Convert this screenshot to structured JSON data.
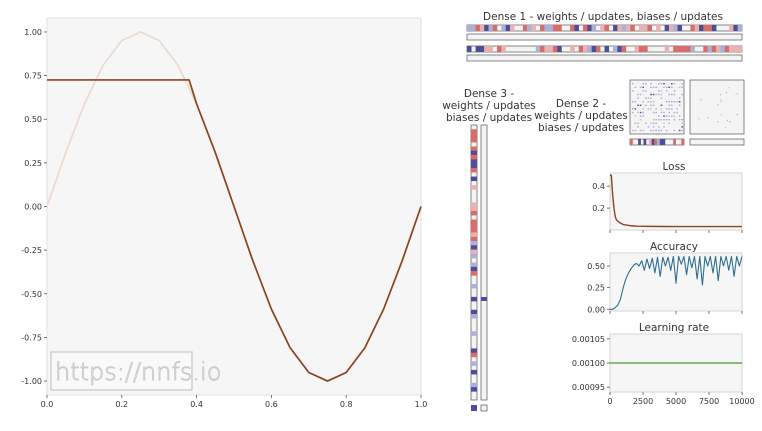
{
  "watermark": "https://nnfs.io",
  "panels": {
    "dense1_title": "Dense 1 - weights / updates, biases / updates",
    "dense2_title": [
      "Dense 2 -",
      "weights / updates",
      "biases / updates"
    ],
    "dense3_title": [
      "Dense 3 -",
      "weights / updates",
      "biases / updates"
    ]
  },
  "chart_data": [
    {
      "type": "line",
      "id": "main",
      "title": "",
      "xlim": [
        0,
        1
      ],
      "ylim": [
        -1.08,
        1.08
      ],
      "x_ticks": [
        "0.0",
        "0.2",
        "0.4",
        "0.6",
        "0.8",
        "1.0"
      ],
      "y_ticks": [
        "-1.00",
        "-0.75",
        "-0.50",
        "-0.25",
        "0.00",
        "0.25",
        "0.50",
        "0.75",
        "1.00"
      ],
      "series": [
        {
          "color": "#ecd9cf",
          "x": [
            0,
            0.05,
            0.1,
            0.15,
            0.2,
            0.25,
            0.3,
            0.35,
            0.4,
            0.45,
            0.5,
            0.55,
            0.6,
            0.65,
            0.7,
            0.75,
            0.8,
            0.85,
            0.9,
            0.95,
            1.0
          ],
          "y": [
            0,
            0.309,
            0.588,
            0.809,
            0.951,
            1.0,
            0.951,
            0.809,
            0.588,
            0.309,
            0,
            -0.309,
            -0.588,
            -0.809,
            -0.951,
            -1.0,
            -0.951,
            -0.809,
            -0.588,
            -0.309,
            0
          ]
        },
        {
          "color": "#8b4421",
          "x": [
            0,
            0.05,
            0.1,
            0.15,
            0.2,
            0.25,
            0.3,
            0.35,
            0.38,
            0.4,
            0.45,
            0.5,
            0.55,
            0.6,
            0.65,
            0.7,
            0.75,
            0.8,
            0.85,
            0.9,
            0.95,
            1.0
          ],
          "y": [
            0.725,
            0.725,
            0.725,
            0.725,
            0.725,
            0.725,
            0.725,
            0.725,
            0.725,
            0.588,
            0.309,
            0,
            -0.309,
            -0.588,
            -0.809,
            -0.951,
            -1.0,
            -0.951,
            -0.809,
            -0.588,
            -0.309,
            0
          ]
        }
      ]
    },
    {
      "type": "line",
      "id": "loss",
      "title": "Loss",
      "xlim": [
        0,
        10000
      ],
      "ylim": [
        0,
        0.52
      ],
      "y_ticks": [
        "0.2",
        "0.4"
      ],
      "series": [
        {
          "color": "#8b4421",
          "x": [
            0,
            100,
            200,
            300,
            400,
            500,
            700,
            1000,
            1500,
            2000,
            3000,
            4000,
            5000,
            6000,
            7000,
            8000,
            9000,
            10000
          ],
          "y": [
            0.5,
            0.5,
            0.32,
            0.2,
            0.12,
            0.09,
            0.07,
            0.05,
            0.04,
            0.035,
            0.033,
            0.032,
            0.031,
            0.031,
            0.031,
            0.031,
            0.031,
            0.031
          ]
        }
      ]
    },
    {
      "type": "line",
      "id": "accuracy",
      "title": "Accuracy",
      "xlim": [
        0,
        10000
      ],
      "ylim": [
        -0.02,
        0.65
      ],
      "y_ticks": [
        "0.00",
        "0.25",
        "0.50"
      ],
      "series": [
        {
          "color": "#2f6f90",
          "x": [
            0,
            200,
            400,
            600,
            800,
            1000,
            1200,
            1400,
            1600,
            1800,
            2000,
            2200,
            2400,
            2600,
            2800,
            3000,
            3200,
            3400,
            3600,
            3800,
            4000,
            4200,
            4400,
            4600,
            4800,
            5000,
            5200,
            5400,
            5600,
            5800,
            6000,
            6200,
            6400,
            6600,
            6800,
            7000,
            7200,
            7400,
            7600,
            7800,
            8000,
            8200,
            8400,
            8600,
            8800,
            9000,
            9200,
            9400,
            9600,
            9800,
            10000
          ],
          "y": [
            0.0,
            0.0,
            0.02,
            0.05,
            0.12,
            0.25,
            0.35,
            0.42,
            0.47,
            0.51,
            0.53,
            0.5,
            0.56,
            0.45,
            0.58,
            0.47,
            0.59,
            0.42,
            0.6,
            0.38,
            0.6,
            0.5,
            0.6,
            0.45,
            0.61,
            0.3,
            0.61,
            0.52,
            0.61,
            0.4,
            0.61,
            0.48,
            0.61,
            0.35,
            0.61,
            0.28,
            0.61,
            0.5,
            0.61,
            0.42,
            0.61,
            0.33,
            0.61,
            0.5,
            0.61,
            0.45,
            0.61,
            0.38,
            0.61,
            0.5,
            0.61
          ]
        }
      ]
    },
    {
      "type": "line",
      "id": "learning_rate",
      "title": "Learning rate",
      "xlim": [
        0,
        10000
      ],
      "ylim": [
        0.00094,
        0.00106
      ],
      "x_ticks": [
        "0",
        "2500",
        "5000",
        "7500",
        "10000"
      ],
      "y_ticks": [
        "0.00095",
        "0.00100",
        "0.00105"
      ],
      "series": [
        {
          "color": "#6aa84f",
          "x": [
            0,
            10000
          ],
          "y": [
            0.001,
            0.001
          ]
        }
      ]
    }
  ]
}
